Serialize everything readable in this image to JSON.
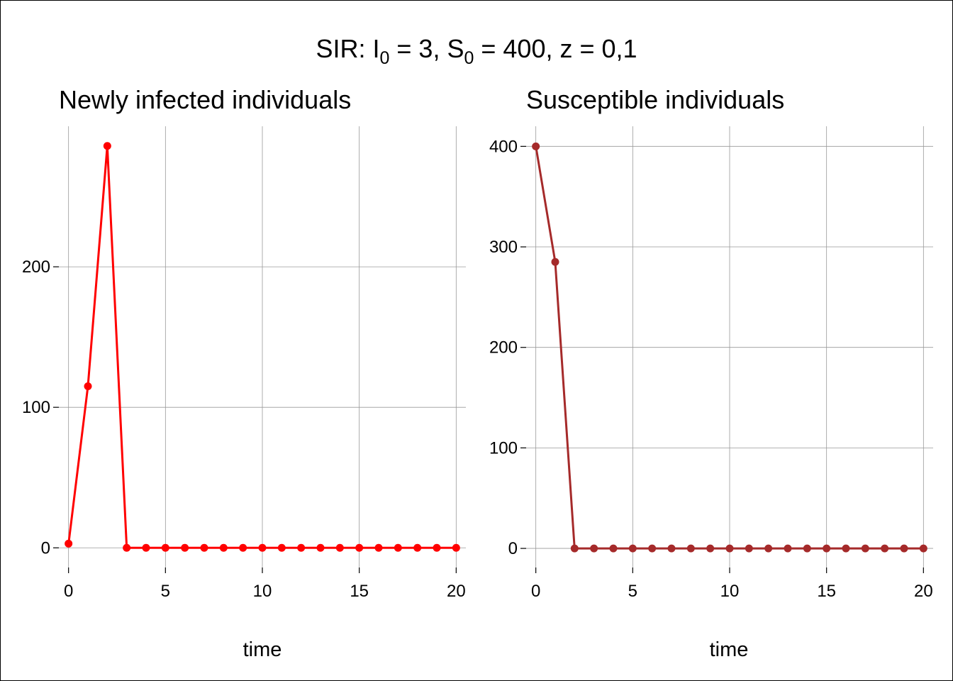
{
  "figure": {
    "title_parts": {
      "prefix": "SIR:  I",
      "i_sub": "0",
      "mid": " = 3,  S",
      "s_sub": "0",
      "suffix": " = 400,  z = 0,1"
    }
  },
  "chart_data": [
    {
      "type": "line",
      "title": "Newly infected individuals",
      "xlabel": "time",
      "ylabel": "",
      "x": [
        0,
        1,
        2,
        3,
        4,
        5,
        6,
        7,
        8,
        9,
        10,
        11,
        12,
        13,
        14,
        15,
        16,
        17,
        18,
        19,
        20
      ],
      "series": [
        {
          "values": [
            3,
            115,
            286,
            0,
            0,
            0,
            0,
            0,
            0,
            0,
            0,
            0,
            0,
            0,
            0,
            0,
            0,
            0,
            0,
            0,
            0
          ],
          "color": "#ff0000"
        }
      ],
      "xlim": [
        -0.5,
        20.5
      ],
      "ylim": [
        -14,
        300
      ],
      "xticks": [
        0,
        5,
        10,
        15,
        20
      ],
      "yticks": [
        0,
        100,
        200
      ],
      "grid": true,
      "markers": true
    },
    {
      "type": "line",
      "title": "Susceptible individuals",
      "xlabel": "time",
      "ylabel": "",
      "x": [
        0,
        1,
        2,
        3,
        4,
        5,
        6,
        7,
        8,
        9,
        10,
        11,
        12,
        13,
        14,
        15,
        16,
        17,
        18,
        19,
        20
      ],
      "series": [
        {
          "values": [
            400,
            285,
            0,
            0,
            0,
            0,
            0,
            0,
            0,
            0,
            0,
            0,
            0,
            0,
            0,
            0,
            0,
            0,
            0,
            0,
            0
          ],
          "color": "#a52a2a"
        }
      ],
      "xlim": [
        -0.5,
        20.5
      ],
      "ylim": [
        -19,
        420
      ],
      "xticks": [
        0,
        5,
        10,
        15,
        20
      ],
      "yticks": [
        0,
        100,
        200,
        300,
        400
      ],
      "grid": true,
      "markers": true
    }
  ]
}
